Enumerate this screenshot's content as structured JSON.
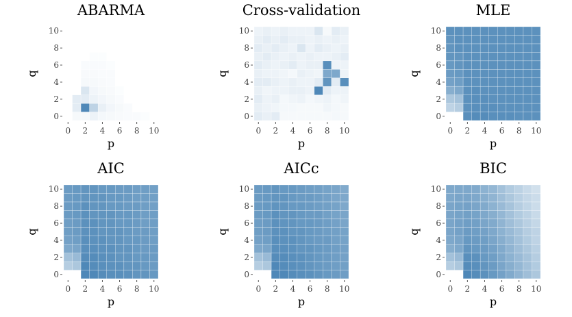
{
  "colors": {
    "high": "#4682B4",
    "low": "#FFFFFF"
  },
  "chart_data": [
    {
      "type": "heatmap",
      "title": "ABARMA",
      "xlabel": "p",
      "ylabel": "q",
      "x": [
        0,
        1,
        2,
        3,
        4,
        5,
        6,
        7,
        8,
        9,
        10
      ],
      "y": [
        0,
        1,
        2,
        3,
        4,
        5,
        6,
        7,
        8,
        9,
        10
      ],
      "xticks": [
        "0",
        "2",
        "4",
        "6",
        "8",
        "10"
      ],
      "yticks": [
        "0",
        "2",
        "4",
        "6",
        "8",
        "10"
      ],
      "zlim": [
        0,
        1
      ],
      "z": [
        [
          0.0,
          0.05,
          0.05,
          0.1,
          0.06,
          0.05,
          0.04,
          0.03,
          0.03,
          0.02,
          0.0
        ],
        [
          0.0,
          0.15,
          0.95,
          0.35,
          0.12,
          0.07,
          0.05,
          0.03,
          0.0,
          0.0,
          0.0
        ],
        [
          0.0,
          0.15,
          0.15,
          0.1,
          0.07,
          0.05,
          0.03,
          0.0,
          0.0,
          0.0,
          0.0
        ],
        [
          0.0,
          0.0,
          0.2,
          0.07,
          0.05,
          0.04,
          0.02,
          0.0,
          0.0,
          0.0,
          0.0
        ],
        [
          0.0,
          0.0,
          0.05,
          0.05,
          0.04,
          0.03,
          0.0,
          0.0,
          0.0,
          0.0,
          0.0
        ],
        [
          0.0,
          0.0,
          0.04,
          0.04,
          0.03,
          0.03,
          0.0,
          0.0,
          0.0,
          0.0,
          0.0
        ],
        [
          0.0,
          0.0,
          0.03,
          0.03,
          0.03,
          0.02,
          0.0,
          0.0,
          0.0,
          0.0,
          0.0
        ],
        [
          0.0,
          0.0,
          0.0,
          0.02,
          0.02,
          0.0,
          0.0,
          0.0,
          0.0,
          0.0,
          0.0
        ],
        [
          0.0,
          0.0,
          0.0,
          0.0,
          0.0,
          0.0,
          0.0,
          0.0,
          0.0,
          0.0,
          0.0
        ],
        [
          0.0,
          0.0,
          0.0,
          0.0,
          0.0,
          0.0,
          0.0,
          0.0,
          0.0,
          0.0,
          0.0
        ],
        [
          0.0,
          0.0,
          0.0,
          0.0,
          0.0,
          0.0,
          0.0,
          0.0,
          0.0,
          0.0,
          0.0
        ]
      ]
    },
    {
      "type": "heatmap",
      "title": "Cross-validation",
      "xlabel": "p",
      "ylabel": "q",
      "x": [
        0,
        1,
        2,
        3,
        4,
        5,
        6,
        7,
        8,
        9,
        10
      ],
      "y": [
        0,
        1,
        2,
        3,
        4,
        5,
        6,
        7,
        8,
        9,
        10
      ],
      "xticks": [
        "0",
        "2",
        "4",
        "6",
        "8",
        "10"
      ],
      "yticks": [
        "0",
        "2",
        "4",
        "6",
        "8",
        "10"
      ],
      "zlim": [
        0,
        1
      ],
      "z": [
        [
          0.15,
          0.12,
          0.15,
          0.05,
          0.05,
          0.05,
          0.05,
          0.05,
          0.05,
          0.06,
          0.05
        ],
        [
          0.12,
          0.1,
          0.08,
          0.06,
          0.06,
          0.05,
          0.05,
          0.05,
          0.08,
          0.06,
          0.05
        ],
        [
          0.15,
          0.1,
          0.12,
          0.06,
          0.08,
          0.1,
          0.06,
          0.08,
          0.1,
          0.06,
          0.08
        ],
        [
          0.12,
          0.08,
          0.1,
          0.1,
          0.12,
          0.12,
          0.1,
          0.95,
          0.15,
          0.1,
          0.1
        ],
        [
          0.15,
          0.15,
          0.12,
          0.1,
          0.12,
          0.1,
          0.1,
          0.15,
          0.85,
          0.15,
          0.9
        ],
        [
          0.12,
          0.1,
          0.1,
          0.08,
          0.06,
          0.12,
          0.1,
          0.08,
          0.7,
          0.7,
          0.1
        ],
        [
          0.15,
          0.12,
          0.1,
          0.12,
          0.15,
          0.1,
          0.12,
          0.12,
          0.9,
          0.1,
          0.1
        ],
        [
          0.12,
          0.15,
          0.12,
          0.1,
          0.12,
          0.1,
          0.12,
          0.1,
          0.1,
          0.12,
          0.15
        ],
        [
          0.15,
          0.12,
          0.15,
          0.12,
          0.1,
          0.2,
          0.1,
          0.15,
          0.12,
          0.1,
          0.12
        ],
        [
          0.12,
          0.15,
          0.12,
          0.15,
          0.12,
          0.12,
          0.1,
          0.12,
          0.1,
          0.12,
          0.1
        ],
        [
          0.1,
          0.12,
          0.1,
          0.12,
          0.1,
          0.1,
          0.1,
          0.2,
          0.05,
          0.15,
          0.12
        ]
      ]
    },
    {
      "type": "heatmap",
      "title": "MLE",
      "xlabel": "p",
      "ylabel": "q",
      "x": [
        0,
        1,
        2,
        3,
        4,
        5,
        6,
        7,
        8,
        9,
        10
      ],
      "y": [
        0,
        1,
        2,
        3,
        4,
        5,
        6,
        7,
        8,
        9,
        10
      ],
      "xticks": [
        "0",
        "2",
        "4",
        "6",
        "8",
        "10"
      ],
      "yticks": [
        "0",
        "2",
        "4",
        "6",
        "8",
        "10"
      ],
      "zlim": [
        0,
        1
      ],
      "z": [
        [
          0.0,
          0.0,
          0.9,
          0.92,
          0.92,
          0.9,
          0.9,
          0.9,
          0.88,
          0.88,
          0.88
        ],
        [
          0.35,
          0.4,
          0.88,
          0.9,
          0.9,
          0.9,
          0.88,
          0.88,
          0.88,
          0.88,
          0.88
        ],
        [
          0.45,
          0.5,
          0.88,
          0.9,
          0.9,
          0.88,
          0.88,
          0.88,
          0.88,
          0.88,
          0.88
        ],
        [
          0.65,
          0.7,
          0.88,
          0.9,
          0.88,
          0.88,
          0.88,
          0.88,
          0.88,
          0.88,
          0.88
        ],
        [
          0.75,
          0.78,
          0.88,
          0.88,
          0.88,
          0.88,
          0.88,
          0.88,
          0.88,
          0.88,
          0.88
        ],
        [
          0.8,
          0.82,
          0.88,
          0.88,
          0.88,
          0.88,
          0.88,
          0.88,
          0.88,
          0.88,
          0.88
        ],
        [
          0.82,
          0.85,
          0.88,
          0.88,
          0.88,
          0.88,
          0.88,
          0.88,
          0.88,
          0.88,
          0.88
        ],
        [
          0.85,
          0.85,
          0.88,
          0.88,
          0.88,
          0.88,
          0.88,
          0.88,
          0.88,
          0.88,
          0.88
        ],
        [
          0.85,
          0.88,
          0.88,
          0.88,
          0.88,
          0.88,
          0.88,
          0.88,
          0.88,
          0.88,
          0.88
        ],
        [
          0.85,
          0.88,
          0.88,
          0.88,
          0.88,
          0.88,
          0.88,
          0.88,
          0.88,
          0.88,
          0.88
        ],
        [
          0.88,
          0.88,
          0.88,
          0.88,
          0.88,
          0.88,
          0.88,
          0.88,
          0.88,
          0.88,
          0.88
        ]
      ]
    },
    {
      "type": "heatmap",
      "title": "AIC",
      "xlabel": "p",
      "ylabel": "q",
      "x": [
        0,
        1,
        2,
        3,
        4,
        5,
        6,
        7,
        8,
        9,
        10
      ],
      "y": [
        0,
        1,
        2,
        3,
        4,
        5,
        6,
        7,
        8,
        9,
        10
      ],
      "xticks": [
        "0",
        "2",
        "4",
        "6",
        "8",
        "10"
      ],
      "yticks": [
        "0",
        "2",
        "4",
        "6",
        "8",
        "10"
      ],
      "zlim": [
        0,
        1
      ],
      "z": [
        [
          0.0,
          0.0,
          0.95,
          0.95,
          0.92,
          0.9,
          0.9,
          0.88,
          0.85,
          0.85,
          0.82
        ],
        [
          0.4,
          0.45,
          0.95,
          0.92,
          0.9,
          0.88,
          0.88,
          0.85,
          0.85,
          0.82,
          0.8
        ],
        [
          0.5,
          0.55,
          0.92,
          0.92,
          0.9,
          0.88,
          0.85,
          0.85,
          0.82,
          0.82,
          0.8
        ],
        [
          0.7,
          0.72,
          0.9,
          0.9,
          0.88,
          0.88,
          0.85,
          0.85,
          0.82,
          0.8,
          0.8
        ],
        [
          0.75,
          0.78,
          0.9,
          0.88,
          0.88,
          0.85,
          0.85,
          0.82,
          0.82,
          0.8,
          0.78
        ],
        [
          0.78,
          0.8,
          0.88,
          0.88,
          0.85,
          0.85,
          0.85,
          0.82,
          0.8,
          0.8,
          0.78
        ],
        [
          0.78,
          0.8,
          0.88,
          0.88,
          0.85,
          0.85,
          0.82,
          0.82,
          0.8,
          0.78,
          0.78
        ],
        [
          0.8,
          0.82,
          0.88,
          0.85,
          0.85,
          0.85,
          0.82,
          0.82,
          0.8,
          0.78,
          0.78
        ],
        [
          0.8,
          0.82,
          0.88,
          0.85,
          0.85,
          0.82,
          0.82,
          0.8,
          0.8,
          0.78,
          0.76
        ],
        [
          0.8,
          0.82,
          0.85,
          0.85,
          0.85,
          0.82,
          0.82,
          0.8,
          0.78,
          0.78,
          0.76
        ],
        [
          0.8,
          0.82,
          0.85,
          0.85,
          0.82,
          0.82,
          0.8,
          0.8,
          0.78,
          0.78,
          0.76
        ]
      ]
    },
    {
      "type": "heatmap",
      "title": "AICc",
      "xlabel": "p",
      "ylabel": "q",
      "x": [
        0,
        1,
        2,
        3,
        4,
        5,
        6,
        7,
        8,
        9,
        10
      ],
      "y": [
        0,
        1,
        2,
        3,
        4,
        5,
        6,
        7,
        8,
        9,
        10
      ],
      "xticks": [
        "0",
        "2",
        "4",
        "6",
        "8",
        "10"
      ],
      "yticks": [
        "0",
        "2",
        "4",
        "6",
        "8",
        "10"
      ],
      "zlim": [
        0,
        1
      ],
      "z": [
        [
          0.0,
          0.0,
          0.95,
          0.95,
          0.92,
          0.9,
          0.88,
          0.85,
          0.82,
          0.8,
          0.78
        ],
        [
          0.4,
          0.45,
          0.95,
          0.92,
          0.9,
          0.88,
          0.85,
          0.82,
          0.8,
          0.78,
          0.76
        ],
        [
          0.5,
          0.55,
          0.92,
          0.92,
          0.9,
          0.88,
          0.85,
          0.82,
          0.8,
          0.78,
          0.75
        ],
        [
          0.7,
          0.72,
          0.9,
          0.9,
          0.88,
          0.85,
          0.85,
          0.82,
          0.8,
          0.78,
          0.75
        ],
        [
          0.75,
          0.78,
          0.9,
          0.88,
          0.88,
          0.85,
          0.82,
          0.8,
          0.8,
          0.76,
          0.74
        ],
        [
          0.78,
          0.8,
          0.88,
          0.88,
          0.85,
          0.85,
          0.82,
          0.8,
          0.78,
          0.76,
          0.74
        ],
        [
          0.78,
          0.8,
          0.88,
          0.86,
          0.85,
          0.82,
          0.82,
          0.8,
          0.78,
          0.75,
          0.72
        ],
        [
          0.8,
          0.82,
          0.88,
          0.85,
          0.85,
          0.82,
          0.8,
          0.8,
          0.76,
          0.74,
          0.72
        ],
        [
          0.8,
          0.82,
          0.86,
          0.85,
          0.82,
          0.82,
          0.8,
          0.78,
          0.76,
          0.74,
          0.7
        ],
        [
          0.8,
          0.82,
          0.85,
          0.85,
          0.82,
          0.8,
          0.8,
          0.78,
          0.75,
          0.72,
          0.7
        ],
        [
          0.8,
          0.82,
          0.85,
          0.82,
          0.82,
          0.8,
          0.78,
          0.76,
          0.74,
          0.72,
          0.68
        ]
      ]
    },
    {
      "type": "heatmap",
      "title": "BIC",
      "xlabel": "p",
      "ylabel": "q",
      "x": [
        0,
        1,
        2,
        3,
        4,
        5,
        6,
        7,
        8,
        9,
        10
      ],
      "y": [
        0,
        1,
        2,
        3,
        4,
        5,
        6,
        7,
        8,
        9,
        10
      ],
      "xticks": [
        "0",
        "2",
        "4",
        "6",
        "8",
        "10"
      ],
      "yticks": [
        "0",
        "2",
        "4",
        "6",
        "8",
        "10"
      ],
      "zlim": [
        0,
        1
      ],
      "z": [
        [
          0.0,
          0.0,
          0.95,
          0.92,
          0.88,
          0.82,
          0.75,
          0.68,
          0.6,
          0.52,
          0.45
        ],
        [
          0.4,
          0.45,
          0.92,
          0.9,
          0.85,
          0.8,
          0.72,
          0.65,
          0.58,
          0.5,
          0.42
        ],
        [
          0.5,
          0.55,
          0.9,
          0.88,
          0.82,
          0.78,
          0.7,
          0.62,
          0.55,
          0.48,
          0.4
        ],
        [
          0.65,
          0.7,
          0.85,
          0.82,
          0.8,
          0.75,
          0.68,
          0.6,
          0.52,
          0.45,
          0.38
        ],
        [
          0.7,
          0.72,
          0.82,
          0.8,
          0.78,
          0.72,
          0.65,
          0.58,
          0.5,
          0.42,
          0.35
        ],
        [
          0.72,
          0.75,
          0.8,
          0.78,
          0.75,
          0.7,
          0.62,
          0.55,
          0.48,
          0.4,
          0.35
        ],
        [
          0.72,
          0.75,
          0.78,
          0.76,
          0.72,
          0.68,
          0.6,
          0.52,
          0.45,
          0.38,
          0.32
        ],
        [
          0.72,
          0.74,
          0.76,
          0.74,
          0.7,
          0.65,
          0.58,
          0.5,
          0.42,
          0.36,
          0.3
        ],
        [
          0.72,
          0.74,
          0.75,
          0.72,
          0.68,
          0.62,
          0.55,
          0.48,
          0.4,
          0.34,
          0.28
        ],
        [
          0.7,
          0.72,
          0.72,
          0.7,
          0.65,
          0.6,
          0.52,
          0.45,
          0.38,
          0.32,
          0.28
        ],
        [
          0.7,
          0.7,
          0.7,
          0.68,
          0.62,
          0.58,
          0.5,
          0.42,
          0.36,
          0.3,
          0.25
        ]
      ]
    }
  ]
}
